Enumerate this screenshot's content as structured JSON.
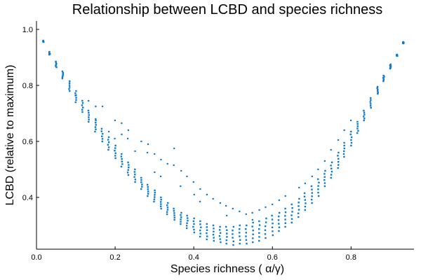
{
  "chart_data": {
    "type": "scatter",
    "title": "Relationship between LCBD and species richness",
    "xlabel": "Species richness (  α/γ)",
    "ylabel": "LCBD (relative to maximum)",
    "xlim": [
      0.0,
      0.96
    ],
    "ylim": [
      0.215,
      1.03
    ],
    "xticks": [
      0.0,
      0.2,
      0.4,
      0.6,
      0.8
    ],
    "xtick_labels": [
      "0.0",
      "0.2",
      "0.4",
      "0.6",
      "0.8"
    ],
    "yticks": [
      0.4,
      0.6,
      0.8,
      1.0
    ],
    "ytick_labels": [
      "0.4",
      "0.6",
      "0.8",
      "1.0"
    ],
    "grid": false,
    "legend": false,
    "marker_color": "#0a7bd0",
    "series": [
      {
        "x": [
          0.017,
          0.033,
          0.05,
          0.067,
          0.083,
          0.1,
          0.117,
          0.133,
          0.15,
          0.167,
          0.183,
          0.2,
          0.217,
          0.233,
          0.25,
          0.267,
          0.283,
          0.3,
          0.317,
          0.333,
          0.35,
          0.367,
          0.383,
          0.4,
          0.417,
          0.433,
          0.45,
          0.467,
          0.483,
          0.5,
          0.517,
          0.533,
          0.55,
          0.567,
          0.583,
          0.6,
          0.617,
          0.633,
          0.65,
          0.667,
          0.683,
          0.7,
          0.717,
          0.733,
          0.75,
          0.767,
          0.783,
          0.8,
          0.817,
          0.833,
          0.85,
          0.867,
          0.883,
          0.9,
          0.917,
          0.933
        ],
        "y_min": [
          0.955,
          0.91,
          0.865,
          0.825,
          0.78,
          0.74,
          0.705,
          0.67,
          0.635,
          0.6,
          0.57,
          0.54,
          0.51,
          0.48,
          0.455,
          0.43,
          0.405,
          0.385,
          0.36,
          0.34,
          0.32,
          0.305,
          0.29,
          0.275,
          0.26,
          0.25,
          0.245,
          0.24,
          0.235,
          0.23,
          0.235,
          0.235,
          0.24,
          0.245,
          0.255,
          0.265,
          0.28,
          0.295,
          0.31,
          0.33,
          0.355,
          0.38,
          0.405,
          0.44,
          0.47,
          0.505,
          0.545,
          0.585,
          0.63,
          0.675,
          0.72,
          0.77,
          0.815,
          0.86,
          0.905,
          0.95
        ],
        "y_max": [
          0.96,
          0.92,
          0.885,
          0.85,
          0.815,
          0.78,
          0.745,
          0.71,
          0.675,
          0.645,
          0.615,
          0.585,
          0.555,
          0.525,
          0.5,
          0.47,
          0.445,
          0.425,
          0.4,
          0.38,
          0.36,
          0.345,
          0.335,
          0.325,
          0.315,
          0.305,
          0.3,
          0.295,
          0.295,
          0.295,
          0.3,
          0.3,
          0.31,
          0.315,
          0.325,
          0.335,
          0.345,
          0.36,
          0.375,
          0.395,
          0.415,
          0.44,
          0.465,
          0.495,
          0.525,
          0.56,
          0.595,
          0.635,
          0.67,
          0.71,
          0.755,
          0.795,
          0.835,
          0.875,
          0.91,
          0.955
        ]
      },
      {
        "name_hidden": "",
        "outliers": [
          [
            0.1,
            0.765
          ],
          [
            0.15,
            0.725
          ],
          [
            0.167,
            0.725
          ],
          [
            0.2,
            0.675
          ],
          [
            0.217,
            0.665
          ],
          [
            0.233,
            0.64
          ],
          [
            0.267,
            0.6
          ],
          [
            0.283,
            0.59
          ],
          [
            0.3,
            0.555
          ],
          [
            0.317,
            0.535
          ],
          [
            0.35,
            0.515
          ],
          [
            0.367,
            0.495
          ],
          [
            0.383,
            0.475
          ],
          [
            0.417,
            0.43
          ],
          [
            0.433,
            0.41
          ],
          [
            0.45,
            0.395
          ],
          [
            0.467,
            0.38
          ],
          [
            0.483,
            0.37
          ],
          [
            0.5,
            0.36
          ],
          [
            0.517,
            0.35
          ],
          [
            0.533,
            0.34
          ],
          [
            0.55,
            0.345
          ],
          [
            0.567,
            0.355
          ],
          [
            0.583,
            0.365
          ],
          [
            0.6,
            0.375
          ],
          [
            0.617,
            0.39
          ],
          [
            0.633,
            0.405
          ],
          [
            0.667,
            0.435
          ],
          [
            0.683,
            0.45
          ],
          [
            0.7,
            0.475
          ],
          [
            0.717,
            0.5
          ],
          [
            0.733,
            0.53
          ],
          [
            0.75,
            0.57
          ],
          [
            0.767,
            0.605
          ],
          [
            0.783,
            0.64
          ],
          [
            0.8,
            0.675
          ],
          [
            0.35,
            0.575
          ],
          [
            0.4,
            0.455
          ],
          [
            0.333,
            0.52
          ],
          [
            0.283,
            0.56
          ],
          [
            0.183,
            0.635
          ],
          [
            0.133,
            0.745
          ],
          [
            0.217,
            0.625
          ],
          [
            0.317,
            0.475
          ],
          [
            0.367,
            0.44
          ],
          [
            0.233,
            0.61
          ],
          [
            0.417,
            0.385
          ],
          [
            0.55,
            0.32
          ],
          [
            0.483,
            0.335
          ],
          [
            0.3,
            0.49
          ],
          [
            0.25,
            0.565
          ],
          [
            0.2,
            0.61
          ],
          [
            0.15,
            0.68
          ],
          [
            0.4,
            0.41
          ]
        ]
      }
    ]
  }
}
